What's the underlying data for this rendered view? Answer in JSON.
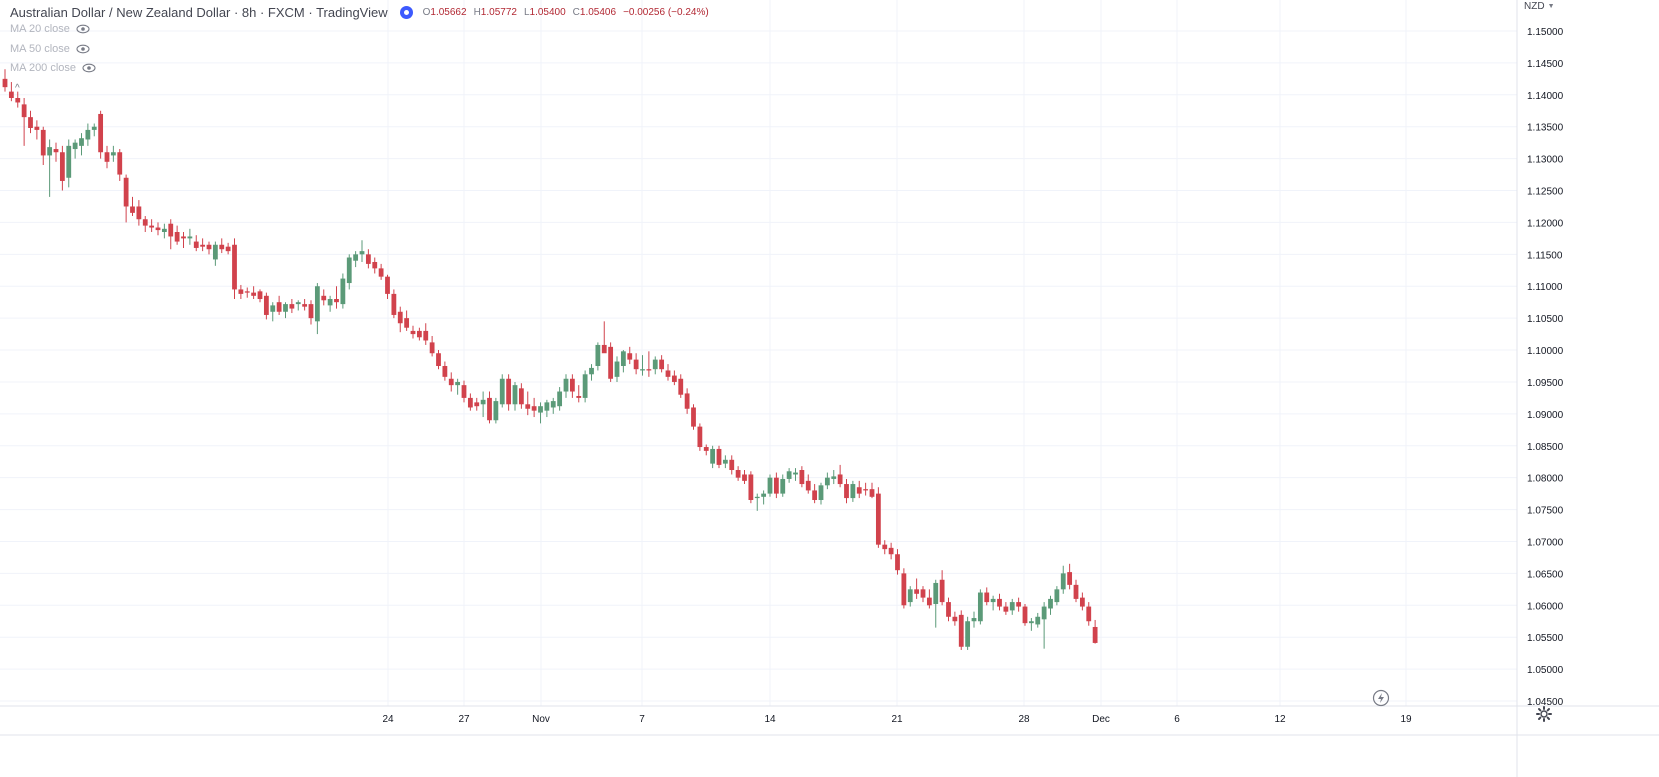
{
  "header": {
    "title": "Australian Dollar / New Zealand Dollar · 8h · FXCM · TradingView",
    "ohlc": {
      "open_label": "O",
      "open": "1.05662",
      "high_label": "H",
      "high": "1.05772",
      "low_label": "L",
      "low": "1.05400",
      "close_label": "C",
      "close": "1.05406",
      "change": "−0.00256 (−0.24%)"
    }
  },
  "indicators": [
    {
      "label": "MA 20 close",
      "icon": "eye-icon"
    },
    {
      "label": "MA 50 close",
      "icon": "eye-icon"
    },
    {
      "label": "MA 200 close",
      "icon": "eye-icon"
    }
  ],
  "currency_selector": {
    "label": "NZD",
    "icon": "chevron-down-icon"
  },
  "colors": {
    "up": "#5b9a78",
    "down": "#d1424c",
    "grid": "#f0f3fa",
    "axis_text": "#131722",
    "background": "#ffffff"
  },
  "chart_data": {
    "type": "candlestick",
    "symbol": "AUDNZD",
    "interval": "8h",
    "ylim": [
      1.045,
      1.153
    ],
    "y_ticks": [
      "1.15000",
      "1.14500",
      "1.14000",
      "1.13500",
      "1.13000",
      "1.12500",
      "1.12000",
      "1.11500",
      "1.11000",
      "1.10500",
      "1.10000",
      "1.09500",
      "1.09000",
      "1.08500",
      "1.08000",
      "1.07500",
      "1.07000",
      "1.06500",
      "1.06000",
      "1.05500",
      "1.05000",
      "1.04500"
    ],
    "x_ticks": [
      "24",
      "27",
      "Nov",
      "7",
      "14",
      "21",
      "28",
      "Dec",
      "6",
      "12",
      "19"
    ],
    "grid": true,
    "candles": [
      {
        "o": 1.1425,
        "h": 1.144,
        "l": 1.1405,
        "c": 1.1412
      },
      {
        "o": 1.1405,
        "h": 1.142,
        "l": 1.139,
        "c": 1.1395
      },
      {
        "o": 1.1395,
        "h": 1.1405,
        "l": 1.138,
        "c": 1.1388
      },
      {
        "o": 1.1385,
        "h": 1.1395,
        "l": 1.132,
        "c": 1.1365
      },
      {
        "o": 1.1365,
        "h": 1.1375,
        "l": 1.134,
        "c": 1.1348
      },
      {
        "o": 1.135,
        "h": 1.136,
        "l": 1.133,
        "c": 1.1345
      },
      {
        "o": 1.1345,
        "h": 1.135,
        "l": 1.129,
        "c": 1.1305
      },
      {
        "o": 1.1305,
        "h": 1.133,
        "l": 1.124,
        "c": 1.1318
      },
      {
        "o": 1.1315,
        "h": 1.1325,
        "l": 1.1295,
        "c": 1.131
      },
      {
        "o": 1.131,
        "h": 1.132,
        "l": 1.125,
        "c": 1.1265
      },
      {
        "o": 1.127,
        "h": 1.133,
        "l": 1.1255,
        "c": 1.132
      },
      {
        "o": 1.1315,
        "h": 1.133,
        "l": 1.13,
        "c": 1.1325
      },
      {
        "o": 1.132,
        "h": 1.134,
        "l": 1.1305,
        "c": 1.1332
      },
      {
        "o": 1.133,
        "h": 1.1355,
        "l": 1.132,
        "c": 1.1345
      },
      {
        "o": 1.1345,
        "h": 1.1355,
        "l": 1.1335,
        "c": 1.135
      },
      {
        "o": 1.137,
        "h": 1.1375,
        "l": 1.13,
        "c": 1.131
      },
      {
        "o": 1.131,
        "h": 1.132,
        "l": 1.1285,
        "c": 1.1295
      },
      {
        "o": 1.1305,
        "h": 1.132,
        "l": 1.1295,
        "c": 1.131
      },
      {
        "o": 1.131,
        "h": 1.1315,
        "l": 1.1265,
        "c": 1.1275
      },
      {
        "o": 1.127,
        "h": 1.1275,
        "l": 1.12,
        "c": 1.1225
      },
      {
        "o": 1.1225,
        "h": 1.124,
        "l": 1.121,
        "c": 1.1215
      },
      {
        "o": 1.1225,
        "h": 1.1235,
        "l": 1.1195,
        "c": 1.1205
      },
      {
        "o": 1.1205,
        "h": 1.121,
        "l": 1.1185,
        "c": 1.1195
      },
      {
        "o": 1.1195,
        "h": 1.1205,
        "l": 1.1185,
        "c": 1.1192
      },
      {
        "o": 1.1192,
        "h": 1.12,
        "l": 1.118,
        "c": 1.1188
      },
      {
        "o": 1.1185,
        "h": 1.1198,
        "l": 1.1175,
        "c": 1.119
      },
      {
        "o": 1.1198,
        "h": 1.1205,
        "l": 1.1158,
        "c": 1.1178
      },
      {
        "o": 1.1185,
        "h": 1.1195,
        "l": 1.1165,
        "c": 1.117
      },
      {
        "o": 1.1178,
        "h": 1.1185,
        "l": 1.116,
        "c": 1.1175
      },
      {
        "o": 1.1175,
        "h": 1.119,
        "l": 1.1165,
        "c": 1.1178
      },
      {
        "o": 1.117,
        "h": 1.118,
        "l": 1.1155,
        "c": 1.116
      },
      {
        "o": 1.1165,
        "h": 1.1175,
        "l": 1.1155,
        "c": 1.1162
      },
      {
        "o": 1.1165,
        "h": 1.117,
        "l": 1.115,
        "c": 1.1158
      },
      {
        "o": 1.1142,
        "h": 1.117,
        "l": 1.1132,
        "c": 1.1165
      },
      {
        "o": 1.1165,
        "h": 1.1175,
        "l": 1.1152,
        "c": 1.1158
      },
      {
        "o": 1.1162,
        "h": 1.1168,
        "l": 1.115,
        "c": 1.1155
      },
      {
        "o": 1.1165,
        "h": 1.1175,
        "l": 1.108,
        "c": 1.1095
      },
      {
        "o": 1.1095,
        "h": 1.1102,
        "l": 1.108,
        "c": 1.1088
      },
      {
        "o": 1.1092,
        "h": 1.1098,
        "l": 1.1082,
        "c": 1.109
      },
      {
        "o": 1.109,
        "h": 1.11,
        "l": 1.108,
        "c": 1.1085
      },
      {
        "o": 1.1092,
        "h": 1.1095,
        "l": 1.1075,
        "c": 1.108
      },
      {
        "o": 1.1085,
        "h": 1.109,
        "l": 1.1048,
        "c": 1.1055
      },
      {
        "o": 1.106,
        "h": 1.1075,
        "l": 1.1045,
        "c": 1.107
      },
      {
        "o": 1.1075,
        "h": 1.1085,
        "l": 1.1055,
        "c": 1.106
      },
      {
        "o": 1.106,
        "h": 1.1075,
        "l": 1.105,
        "c": 1.1072
      },
      {
        "o": 1.1072,
        "h": 1.108,
        "l": 1.1058,
        "c": 1.1065
      },
      {
        "o": 1.1072,
        "h": 1.1078,
        "l": 1.1062,
        "c": 1.1075
      },
      {
        "o": 1.1072,
        "h": 1.108,
        "l": 1.1062,
        "c": 1.1068
      },
      {
        "o": 1.1072,
        "h": 1.1078,
        "l": 1.104,
        "c": 1.105
      },
      {
        "o": 1.1045,
        "h": 1.1105,
        "l": 1.1025,
        "c": 1.11
      },
      {
        "o": 1.1085,
        "h": 1.1095,
        "l": 1.107,
        "c": 1.1078
      },
      {
        "o": 1.107,
        "h": 1.1085,
        "l": 1.106,
        "c": 1.108
      },
      {
        "o": 1.108,
        "h": 1.11,
        "l": 1.1065,
        "c": 1.1075
      },
      {
        "o": 1.1072,
        "h": 1.112,
        "l": 1.1065,
        "c": 1.1112
      },
      {
        "o": 1.1105,
        "h": 1.115,
        "l": 1.1095,
        "c": 1.1145
      },
      {
        "o": 1.114,
        "h": 1.1155,
        "l": 1.113,
        "c": 1.115
      },
      {
        "o": 1.115,
        "h": 1.1172,
        "l": 1.1138,
        "c": 1.1155
      },
      {
        "o": 1.115,
        "h": 1.1158,
        "l": 1.1128,
        "c": 1.1135
      },
      {
        "o": 1.1138,
        "h": 1.1145,
        "l": 1.112,
        "c": 1.1128
      },
      {
        "o": 1.1128,
        "h": 1.1135,
        "l": 1.111,
        "c": 1.1115
      },
      {
        "o": 1.1115,
        "h": 1.1118,
        "l": 1.108,
        "c": 1.1088
      },
      {
        "o": 1.1088,
        "h": 1.1095,
        "l": 1.105,
        "c": 1.1055
      },
      {
        "o": 1.106,
        "h": 1.1068,
        "l": 1.1028,
        "c": 1.1042
      },
      {
        "o": 1.105,
        "h": 1.1062,
        "l": 1.103,
        "c": 1.1035
      },
      {
        "o": 1.103,
        "h": 1.1038,
        "l": 1.1018,
        "c": 1.1025
      },
      {
        "o": 1.103,
        "h": 1.1035,
        "l": 1.1015,
        "c": 1.102
      },
      {
        "o": 1.103,
        "h": 1.1042,
        "l": 1.1008,
        "c": 1.1015
      },
      {
        "o": 1.1012,
        "h": 1.1022,
        "l": 1.099,
        "c": 1.0995
      },
      {
        "o": 1.0995,
        "h": 1.1,
        "l": 1.097,
        "c": 1.0975
      },
      {
        "o": 1.0975,
        "h": 1.0982,
        "l": 1.0952,
        "c": 1.0958
      },
      {
        "o": 1.0955,
        "h": 1.0965,
        "l": 1.0935,
        "c": 1.0945
      },
      {
        "o": 1.0945,
        "h": 1.0955,
        "l": 1.093,
        "c": 1.095
      },
      {
        "o": 1.0945,
        "h": 1.0952,
        "l": 1.0918,
        "c": 1.0925
      },
      {
        "o": 1.0925,
        "h": 1.0932,
        "l": 1.0905,
        "c": 1.091
      },
      {
        "o": 1.0918,
        "h": 1.0925,
        "l": 1.0905,
        "c": 1.0912
      },
      {
        "o": 1.0915,
        "h": 1.0935,
        "l": 1.0895,
        "c": 1.0922
      },
      {
        "o": 1.0925,
        "h": 1.0935,
        "l": 1.0885,
        "c": 1.089
      },
      {
        "o": 1.089,
        "h": 1.0925,
        "l": 1.0885,
        "c": 1.092
      },
      {
        "o": 1.0915,
        "h": 1.0962,
        "l": 1.091,
        "c": 1.0955
      },
      {
        "o": 1.0955,
        "h": 1.0962,
        "l": 1.0905,
        "c": 1.0915
      },
      {
        "o": 1.0915,
        "h": 1.095,
        "l": 1.0905,
        "c": 1.0945
      },
      {
        "o": 1.094,
        "h": 1.0948,
        "l": 1.0908,
        "c": 1.0915
      },
      {
        "o": 1.0915,
        "h": 1.0935,
        "l": 1.0898,
        "c": 1.0908
      },
      {
        "o": 1.0912,
        "h": 1.0925,
        "l": 1.0895,
        "c": 1.0905
      },
      {
        "o": 1.0902,
        "h": 1.0918,
        "l": 1.0885,
        "c": 1.0912
      },
      {
        "o": 1.0905,
        "h": 1.0922,
        "l": 1.0895,
        "c": 1.0918
      },
      {
        "o": 1.091,
        "h": 1.0925,
        "l": 1.09,
        "c": 1.092
      },
      {
        "o": 1.0912,
        "h": 1.0942,
        "l": 1.0905,
        "c": 1.0935
      },
      {
        "o": 1.0935,
        "h": 1.0962,
        "l": 1.0925,
        "c": 1.0955
      },
      {
        "o": 1.0955,
        "h": 1.0962,
        "l": 1.0925,
        "c": 1.0935
      },
      {
        "o": 1.0928,
        "h": 1.0945,
        "l": 1.0918,
        "c": 1.0925
      },
      {
        "o": 1.0925,
        "h": 1.0968,
        "l": 1.0918,
        "c": 1.0962
      },
      {
        "o": 1.0962,
        "h": 1.0978,
        "l": 1.0952,
        "c": 1.0972
      },
      {
        "o": 1.0975,
        "h": 1.1012,
        "l": 1.0968,
        "c": 1.1008
      },
      {
        "o": 1.1008,
        "h": 1.1045,
        "l": 1.0998,
        "c": 1.0995
      },
      {
        "o": 1.1005,
        "h": 1.1012,
        "l": 1.095,
        "c": 1.0955
      },
      {
        "o": 1.0958,
        "h": 1.099,
        "l": 1.095,
        "c": 1.0982
      },
      {
        "o": 1.0975,
        "h": 1.1,
        "l": 1.0965,
        "c": 1.0998
      },
      {
        "o": 1.0995,
        "h": 1.1005,
        "l": 1.0978,
        "c": 1.0985
      },
      {
        "o": 1.0985,
        "h": 1.0995,
        "l": 1.0962,
        "c": 1.097
      },
      {
        "o": 1.0968,
        "h": 1.0992,
        "l": 1.096,
        "c": 1.097
      },
      {
        "o": 1.097,
        "h": 1.0998,
        "l": 1.0958,
        "c": 1.0968
      },
      {
        "o": 1.097,
        "h": 1.099,
        "l": 1.0962,
        "c": 1.0985
      },
      {
        "o": 1.0985,
        "h": 1.0992,
        "l": 1.0965,
        "c": 1.097
      },
      {
        "o": 1.0968,
        "h": 1.0978,
        "l": 1.0952,
        "c": 1.0958
      },
      {
        "o": 1.096,
        "h": 1.0968,
        "l": 1.0945,
        "c": 1.095
      },
      {
        "o": 1.0955,
        "h": 1.0962,
        "l": 1.0925,
        "c": 1.093
      },
      {
        "o": 1.0932,
        "h": 1.094,
        "l": 1.09,
        "c": 1.0908
      },
      {
        "o": 1.091,
        "h": 1.0915,
        "l": 1.0875,
        "c": 1.088
      },
      {
        "o": 1.088,
        "h": 1.0885,
        "l": 1.0842,
        "c": 1.0848
      },
      {
        "o": 1.0848,
        "h": 1.0852,
        "l": 1.0835,
        "c": 1.0842
      },
      {
        "o": 1.0822,
        "h": 1.085,
        "l": 1.0815,
        "c": 1.0845
      },
      {
        "o": 1.0845,
        "h": 1.085,
        "l": 1.0815,
        "c": 1.082
      },
      {
        "o": 1.0822,
        "h": 1.0835,
        "l": 1.0815,
        "c": 1.0828
      },
      {
        "o": 1.0828,
        "h": 1.0835,
        "l": 1.0805,
        "c": 1.0812
      },
      {
        "o": 1.0812,
        "h": 1.0818,
        "l": 1.0795,
        "c": 1.08
      },
      {
        "o": 1.0805,
        "h": 1.0812,
        "l": 1.079,
        "c": 1.0795
      },
      {
        "o": 1.0805,
        "h": 1.081,
        "l": 1.076,
        "c": 1.0765
      },
      {
        "o": 1.0768,
        "h": 1.0775,
        "l": 1.0748,
        "c": 1.077
      },
      {
        "o": 1.077,
        "h": 1.078,
        "l": 1.0758,
        "c": 1.0775
      },
      {
        "o": 1.0775,
        "h": 1.0805,
        "l": 1.077,
        "c": 1.08
      },
      {
        "o": 1.08,
        "h": 1.0808,
        "l": 1.0768,
        "c": 1.0775
      },
      {
        "o": 1.0775,
        "h": 1.0805,
        "l": 1.077,
        "c": 1.0798
      },
      {
        "o": 1.0798,
        "h": 1.0815,
        "l": 1.0792,
        "c": 1.081
      },
      {
        "o": 1.0805,
        "h": 1.0815,
        "l": 1.0795,
        "c": 1.0808
      },
      {
        "o": 1.0812,
        "h": 1.0818,
        "l": 1.0785,
        "c": 1.079
      },
      {
        "o": 1.0795,
        "h": 1.0805,
        "l": 1.0775,
        "c": 1.078
      },
      {
        "o": 1.078,
        "h": 1.079,
        "l": 1.076,
        "c": 1.0765
      },
      {
        "o": 1.0765,
        "h": 1.0792,
        "l": 1.0758,
        "c": 1.0788
      },
      {
        "o": 1.0788,
        "h": 1.0808,
        "l": 1.0782,
        "c": 1.08
      },
      {
        "o": 1.0798,
        "h": 1.0812,
        "l": 1.079,
        "c": 1.0802
      },
      {
        "o": 1.0805,
        "h": 1.082,
        "l": 1.0785,
        "c": 1.079
      },
      {
        "o": 1.079,
        "h": 1.0798,
        "l": 1.076,
        "c": 1.0768
      },
      {
        "o": 1.0768,
        "h": 1.0795,
        "l": 1.0762,
        "c": 1.079
      },
      {
        "o": 1.0785,
        "h": 1.0795,
        "l": 1.0768,
        "c": 1.0775
      },
      {
        "o": 1.0782,
        "h": 1.0792,
        "l": 1.0772,
        "c": 1.078
      },
      {
        "o": 1.0782,
        "h": 1.0792,
        "l": 1.0768,
        "c": 1.077
      },
      {
        "o": 1.0775,
        "h": 1.0785,
        "l": 1.069,
        "c": 1.0695
      },
      {
        "o": 1.0695,
        "h": 1.0702,
        "l": 1.068,
        "c": 1.0688
      },
      {
        "o": 1.069,
        "h": 1.0698,
        "l": 1.0672,
        "c": 1.068
      },
      {
        "o": 1.068,
        "h": 1.0688,
        "l": 1.0648,
        "c": 1.0655
      },
      {
        "o": 1.065,
        "h": 1.0658,
        "l": 1.0595,
        "c": 1.06
      },
      {
        "o": 1.0605,
        "h": 1.063,
        "l": 1.0598,
        "c": 1.0625
      },
      {
        "o": 1.0625,
        "h": 1.0642,
        "l": 1.061,
        "c": 1.0618
      },
      {
        "o": 1.0625,
        "h": 1.063,
        "l": 1.0605,
        "c": 1.0612
      },
      {
        "o": 1.0612,
        "h": 1.0625,
        "l": 1.0595,
        "c": 1.06
      },
      {
        "o": 1.0602,
        "h": 1.064,
        "l": 1.0565,
        "c": 1.0635
      },
      {
        "o": 1.064,
        "h": 1.0655,
        "l": 1.06,
        "c": 1.0605
      },
      {
        "o": 1.0605,
        "h": 1.0612,
        "l": 1.0575,
        "c": 1.0582
      },
      {
        "o": 1.0582,
        "h": 1.059,
        "l": 1.0568,
        "c": 1.0575
      },
      {
        "o": 1.0585,
        "h": 1.0592,
        "l": 1.053,
        "c": 1.0535
      },
      {
        "o": 1.0535,
        "h": 1.0582,
        "l": 1.053,
        "c": 1.0575
      },
      {
        "o": 1.0575,
        "h": 1.059,
        "l": 1.0565,
        "c": 1.058
      },
      {
        "o": 1.0575,
        "h": 1.0625,
        "l": 1.057,
        "c": 1.062
      },
      {
        "o": 1.062,
        "h": 1.0628,
        "l": 1.06,
        "c": 1.0605
      },
      {
        "o": 1.0605,
        "h": 1.0615,
        "l": 1.0592,
        "c": 1.061
      },
      {
        "o": 1.061,
        "h": 1.0618,
        "l": 1.0592,
        "c": 1.0598
      },
      {
        "o": 1.0598,
        "h": 1.0605,
        "l": 1.0585,
        "c": 1.059
      },
      {
        "o": 1.0592,
        "h": 1.061,
        "l": 1.0585,
        "c": 1.0605
      },
      {
        "o": 1.0605,
        "h": 1.0612,
        "l": 1.059,
        "c": 1.0598
      },
      {
        "o": 1.0598,
        "h": 1.0602,
        "l": 1.0568,
        "c": 1.0572
      },
      {
        "o": 1.0572,
        "h": 1.058,
        "l": 1.056,
        "c": 1.0575
      },
      {
        "o": 1.057,
        "h": 1.0588,
        "l": 1.0565,
        "c": 1.0582
      },
      {
        "o": 1.0578,
        "h": 1.0605,
        "l": 1.0532,
        "c": 1.0598
      },
      {
        "o": 1.0595,
        "h": 1.0615,
        "l": 1.0585,
        "c": 1.061
      },
      {
        "o": 1.0605,
        "h": 1.063,
        "l": 1.06,
        "c": 1.0625
      },
      {
        "o": 1.0625,
        "h": 1.0662,
        "l": 1.0618,
        "c": 1.065
      },
      {
        "o": 1.0652,
        "h": 1.0665,
        "l": 1.0625,
        "c": 1.0632
      },
      {
        "o": 1.0632,
        "h": 1.064,
        "l": 1.0605,
        "c": 1.061
      },
      {
        "o": 1.0612,
        "h": 1.062,
        "l": 1.0592,
        "c": 1.0598
      },
      {
        "o": 1.0598,
        "h": 1.0605,
        "l": 1.0568,
        "c": 1.0575
      },
      {
        "o": 1.0566,
        "h": 1.0577,
        "l": 1.054,
        "c": 1.0541
      }
    ]
  }
}
